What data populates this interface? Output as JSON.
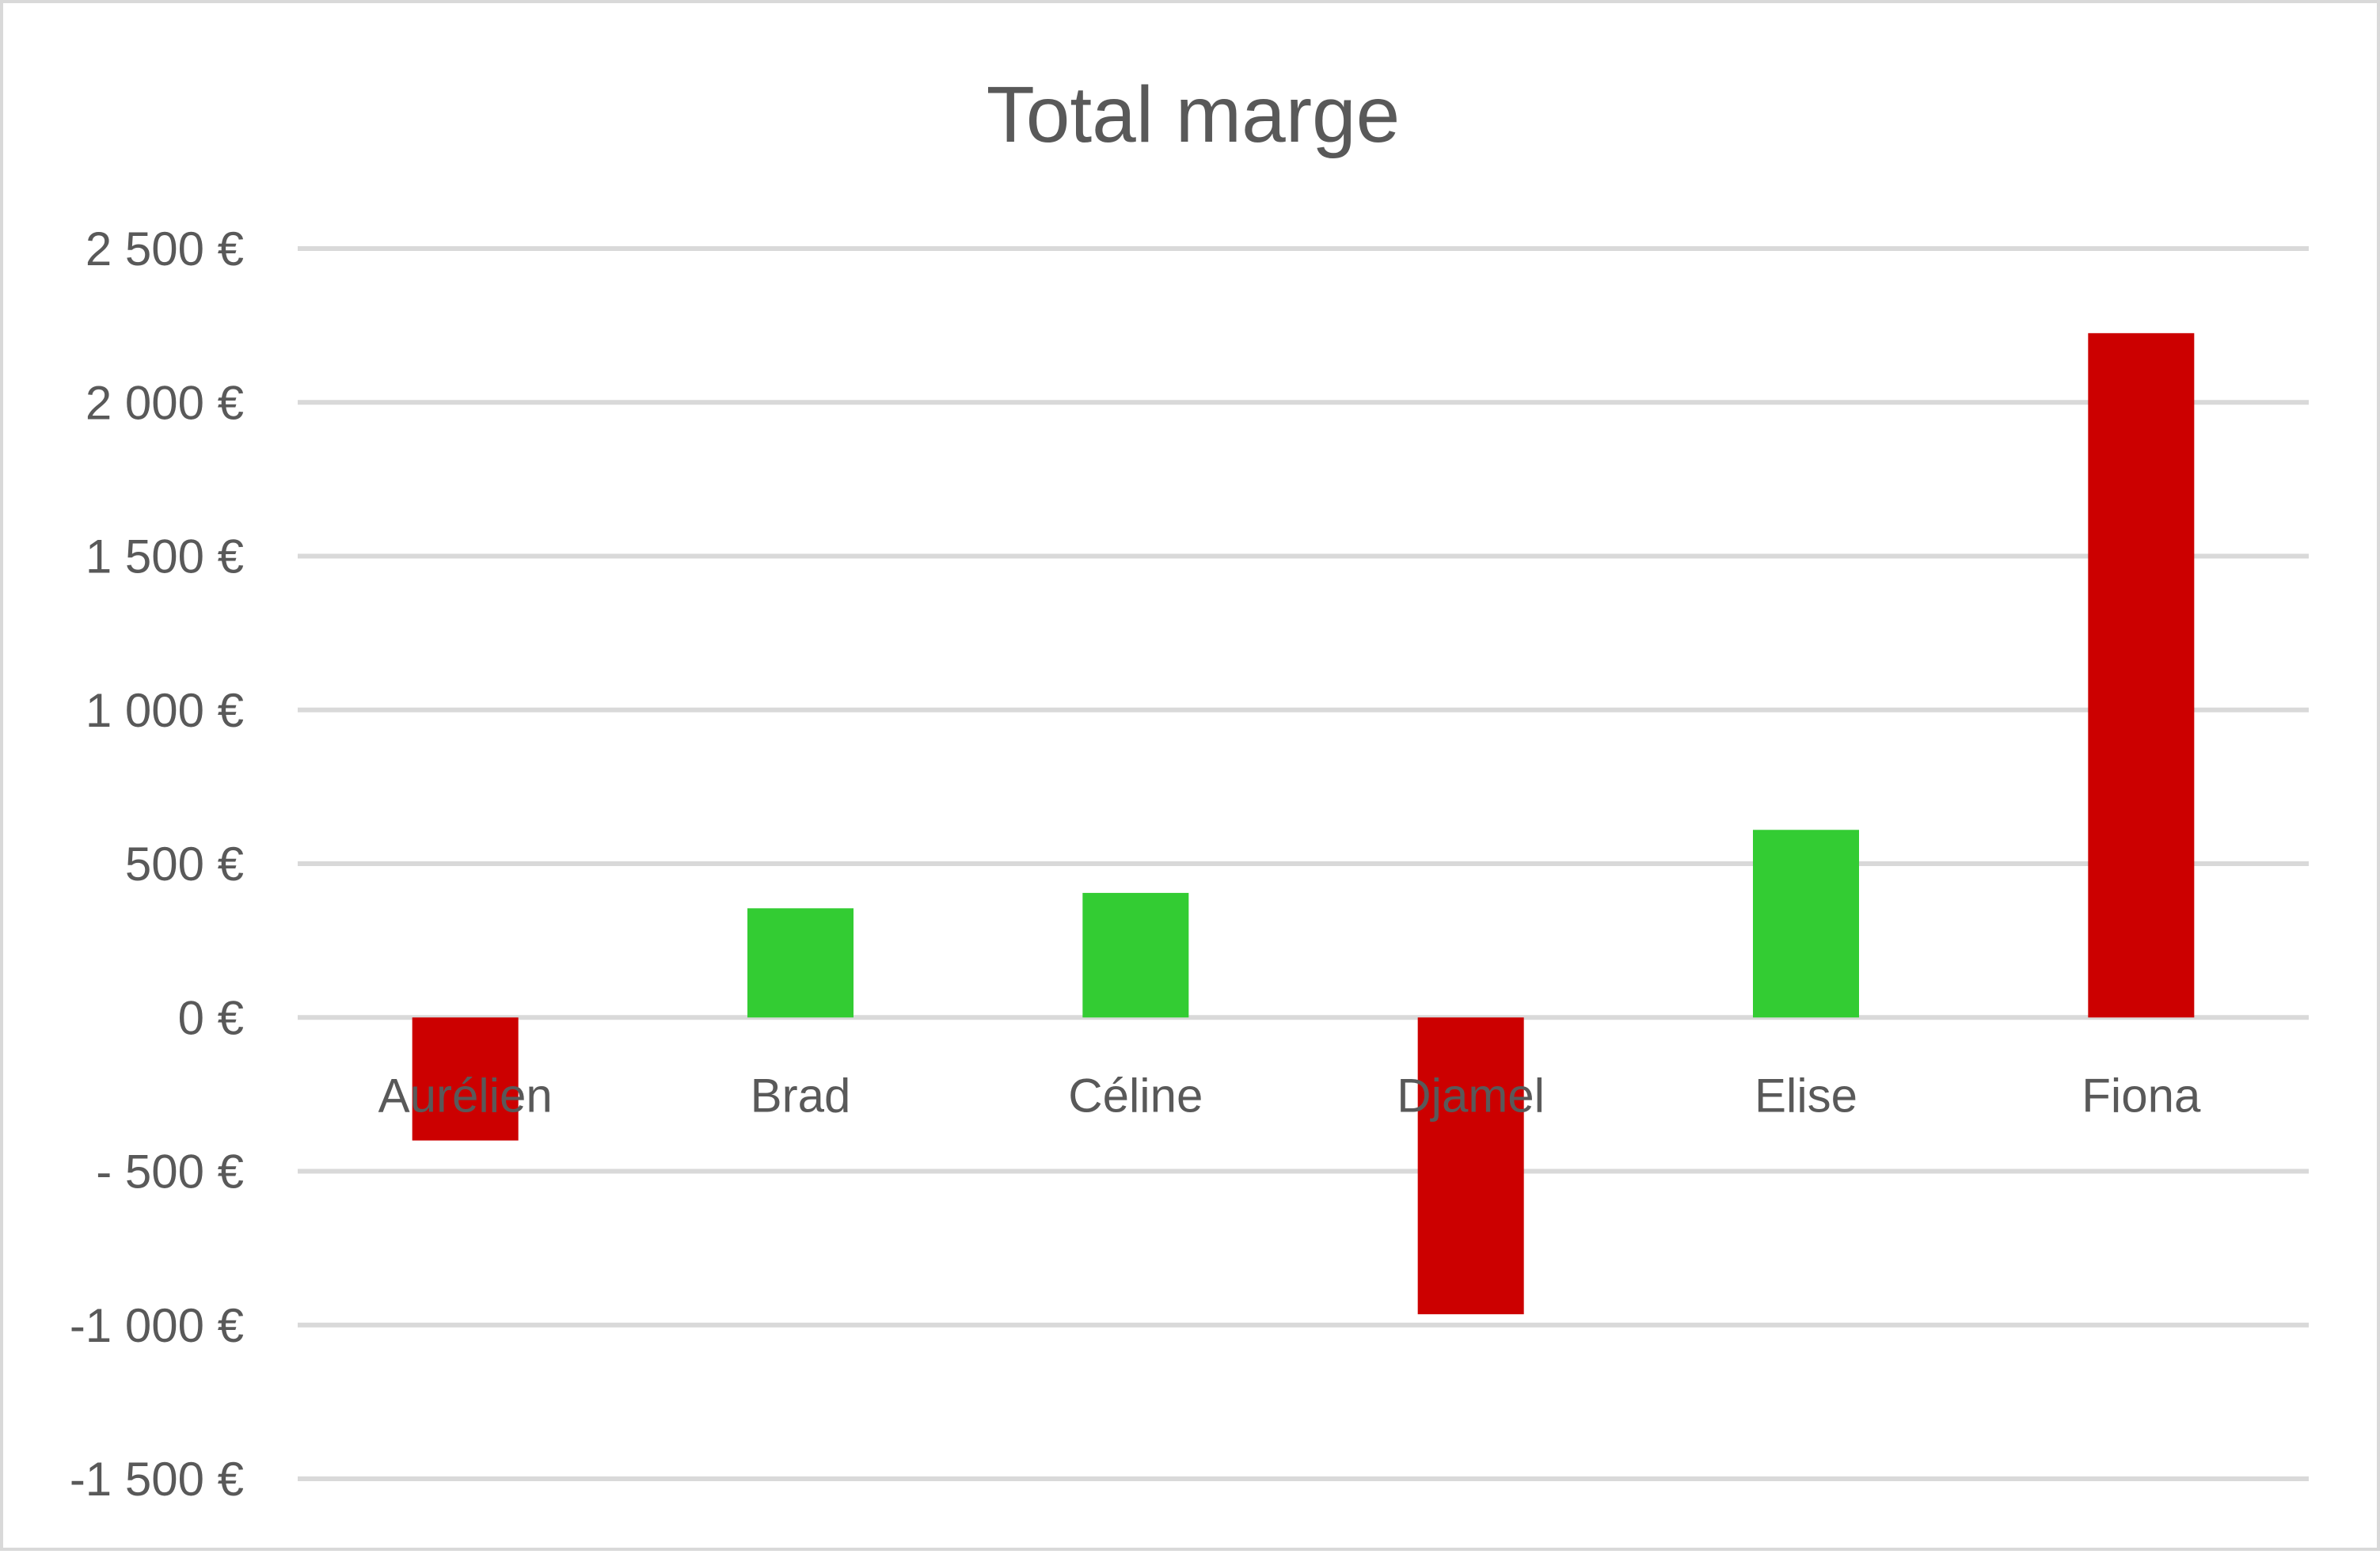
{
  "chart_data": {
    "type": "bar",
    "title": "Total marge",
    "xlabel": "",
    "ylabel": "",
    "categories": [
      "Aurélien",
      "Brad",
      "Céline",
      "Djamel",
      "Elise",
      "Fiona"
    ],
    "values": [
      -400,
      355,
      405,
      -965,
      610,
      2225
    ],
    "bar_colors": [
      "#cc0000",
      "#33cc33",
      "#33cc33",
      "#cc0000",
      "#33cc33",
      "#cc0000"
    ],
    "ylim": [
      -1500,
      2500
    ],
    "yticks": [
      2500,
      2000,
      1500,
      1000,
      500,
      0,
      -500,
      -1000,
      -1500
    ],
    "ytick_labels": [
      "2 500 €",
      "2 000 €",
      "1 500 €",
      "1 000 €",
      "500 €",
      "0 €",
      "- 500 €",
      "-1 000 €",
      "-1 500 €"
    ],
    "grid": true,
    "legend": "none"
  },
  "colors": {
    "text": "#595959",
    "grid": "#d9d9d9",
    "border": "#d9d9d9",
    "background": "#ffffff"
  }
}
